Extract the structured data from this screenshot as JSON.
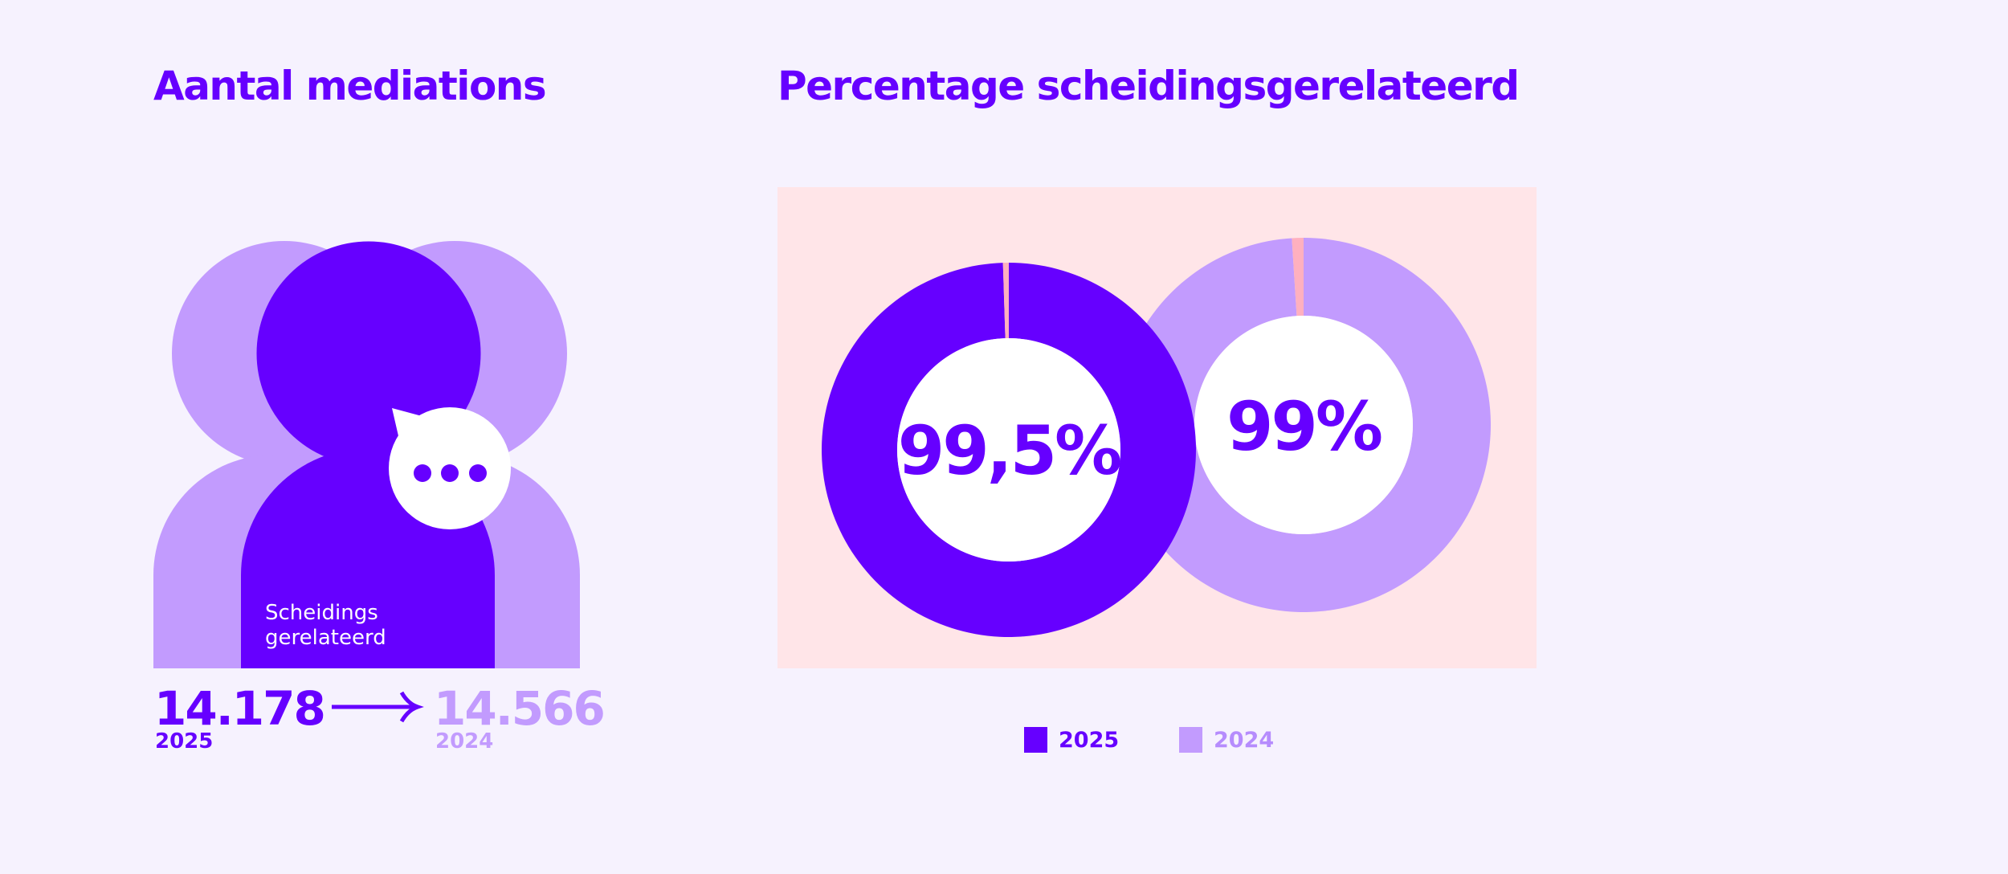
{
  "colors": {
    "background": "#f6f2fe",
    "primary": "#6600ff",
    "secondary": "#c29bfe",
    "panel": "#ffe5e8",
    "remainder": "#ffb0bf",
    "white": "#ffffff"
  },
  "left": {
    "title": "Aantal mediations",
    "figure_label_line1": "Scheidings",
    "figure_label_line2": "gerelateerd",
    "bubble_icon": "speech-bubble-ellipsis-icon",
    "current_value": "14.178",
    "current_year": "2025",
    "arrow_icon": "arrow-right-icon",
    "previous_value": "14.566",
    "previous_year": "2024"
  },
  "chart_data": {
    "type": "pie",
    "title": "Percentage scheidingsgerelateerd",
    "series": [
      {
        "name": "2025",
        "value": 99.5,
        "label": "99,5%",
        "remainder": 0.5
      },
      {
        "name": "2024",
        "value": 99,
        "label": "99%",
        "remainder": 1
      }
    ],
    "legend": {
      "placement": "bottom",
      "entries": [
        "2025",
        "2024"
      ]
    }
  }
}
